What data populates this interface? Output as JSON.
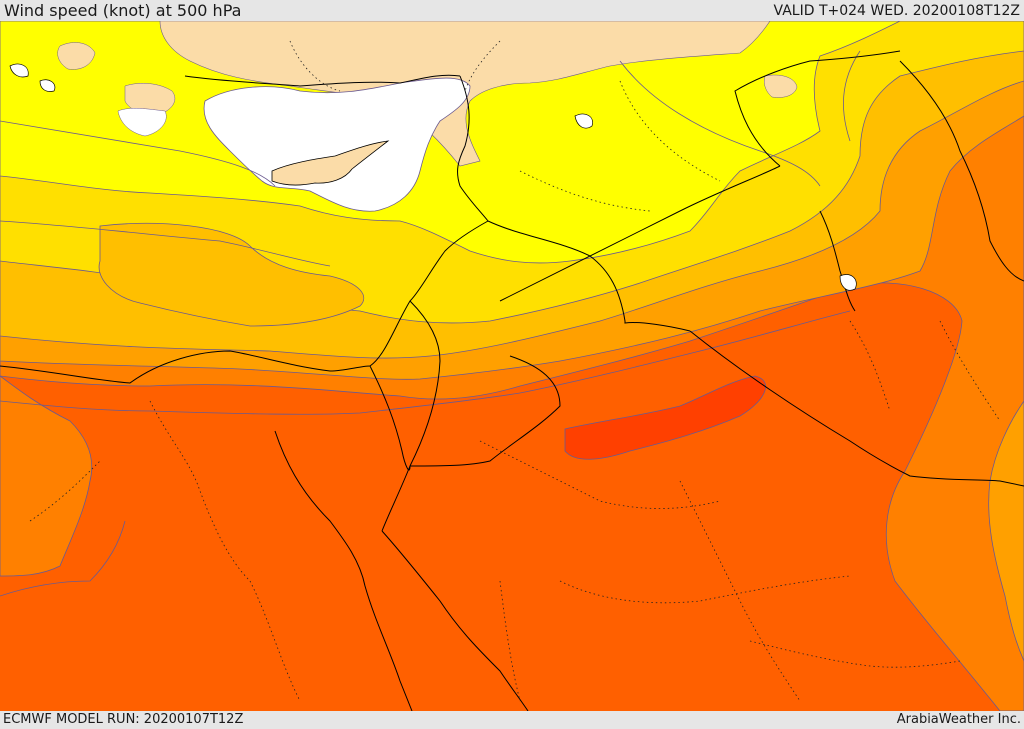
{
  "header": {
    "title": "Wind speed (knot) at 500 hPa",
    "valid_time": "VALID T+024 WED. 20200108T12Z"
  },
  "footer": {
    "model_run": "ECMWF MODEL RUN: 20200107T12Z",
    "credit": "ArabiaWeather Inc."
  },
  "map": {
    "colors": {
      "land_base": "#fbdca8",
      "very_light": "#ffffff",
      "yellow": "#ffff00",
      "gold": "#ffe000",
      "amber": "#ffbf00",
      "orange_light": "#ffa000",
      "orange": "#ff8000",
      "orange_dark": "#ff6000",
      "red_orange": "#ff4000",
      "border": "#000000",
      "contour": "#6b5a90"
    }
  }
}
